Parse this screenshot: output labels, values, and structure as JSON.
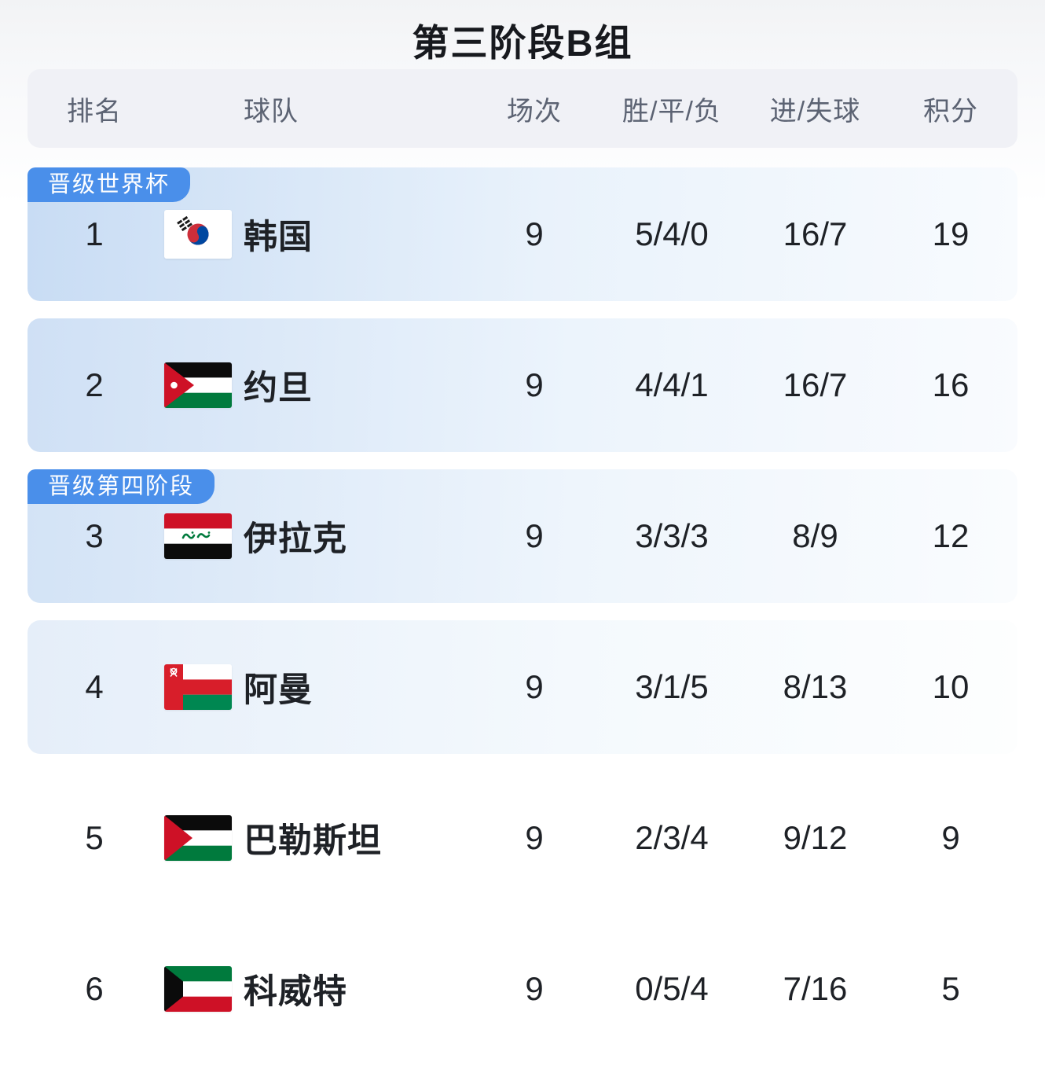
{
  "title": "第三阶段B组",
  "colors": {
    "badge_blue": "#4a8fea",
    "qualified_row_tint": "#c8dcf4",
    "header_bg": "#f0f1f6",
    "text_dark": "#1e2126"
  },
  "table": {
    "headers": {
      "rank": "排名",
      "team": "球队",
      "matches": "场次",
      "wdl": "胜/平/负",
      "goals": "进/失球",
      "points": "积分"
    },
    "rows": [
      {
        "rank": "1",
        "team": "韩国",
        "flag": "south-korea",
        "matches": "9",
        "wdl": "5/4/0",
        "goals": "16/7",
        "points": "19",
        "badge": "晋级世界杯",
        "tier": 1
      },
      {
        "rank": "2",
        "team": "约旦",
        "flag": "jordan",
        "matches": "9",
        "wdl": "4/4/1",
        "goals": "16/7",
        "points": "16",
        "tier": 2
      },
      {
        "rank": "3",
        "team": "伊拉克",
        "flag": "iraq",
        "matches": "9",
        "wdl": "3/3/3",
        "goals": "8/9",
        "points": "12",
        "badge": "晋级第四阶段",
        "tier": 3
      },
      {
        "rank": "4",
        "team": "阿曼",
        "flag": "oman",
        "matches": "9",
        "wdl": "3/1/5",
        "goals": "8/13",
        "points": "10",
        "tier": 4
      },
      {
        "rank": "5",
        "team": "巴勒斯坦",
        "flag": "palestine",
        "matches": "9",
        "wdl": "2/3/4",
        "goals": "9/12",
        "points": "9",
        "tier": 0
      },
      {
        "rank": "6",
        "team": "科威特",
        "flag": "kuwait",
        "matches": "9",
        "wdl": "0/5/4",
        "goals": "7/16",
        "points": "5",
        "tier": 0
      }
    ]
  }
}
